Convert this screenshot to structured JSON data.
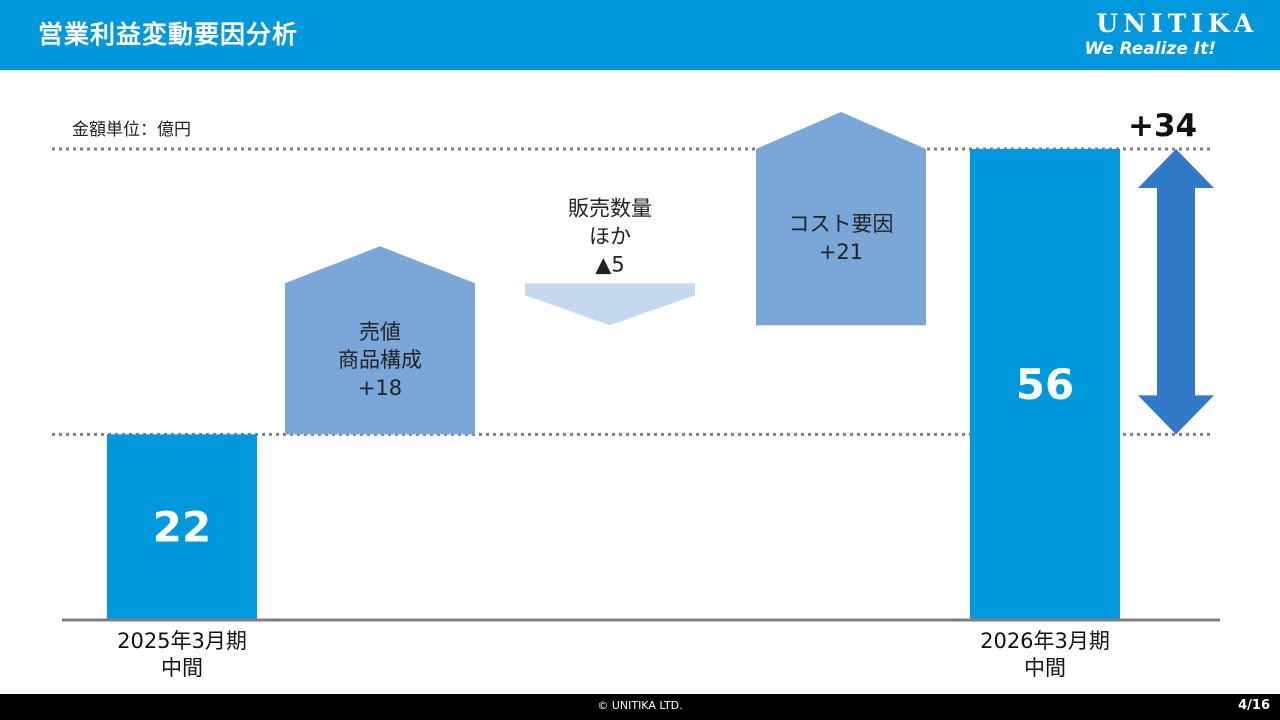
{
  "header": {
    "title": "営業利益変動要因分析",
    "logo_name": "UNITIKA",
    "logo_slogan": "We Realize It!"
  },
  "unit_label": "金額単位：億円",
  "total_change_label": "+34",
  "footer": {
    "copyright": "© UNITIKA LTD.",
    "page": "4/16"
  },
  "colors": {
    "header": "#0098dc",
    "total_bar": "#0098dc",
    "positive_factor": "#7aa6d8",
    "negative_factor": "#c5d9ee",
    "range_arrow": "#3279c8"
  },
  "chart_data": {
    "type": "bar",
    "subtype": "waterfall",
    "ylim": [
      0,
      56
    ],
    "items": [
      {
        "kind": "total",
        "value": 22,
        "label": "22",
        "category": [
          "2025年3月期",
          "中間"
        ]
      },
      {
        "kind": "increase",
        "value": 18,
        "label": [
          "売値",
          "商品構成",
          "+18"
        ]
      },
      {
        "kind": "decrease",
        "value": -5,
        "label": [
          "販売数量",
          "ほか",
          "▲5"
        ]
      },
      {
        "kind": "increase",
        "value": 21,
        "label": [
          "コスト要因",
          "+21"
        ]
      },
      {
        "kind": "total",
        "value": 56,
        "label": "56",
        "category": [
          "2026年3月期",
          "中間"
        ]
      }
    ],
    "reference_lines": [
      22,
      56
    ],
    "range_arrow": {
      "from": 22,
      "to": 56,
      "label": "+34"
    }
  }
}
